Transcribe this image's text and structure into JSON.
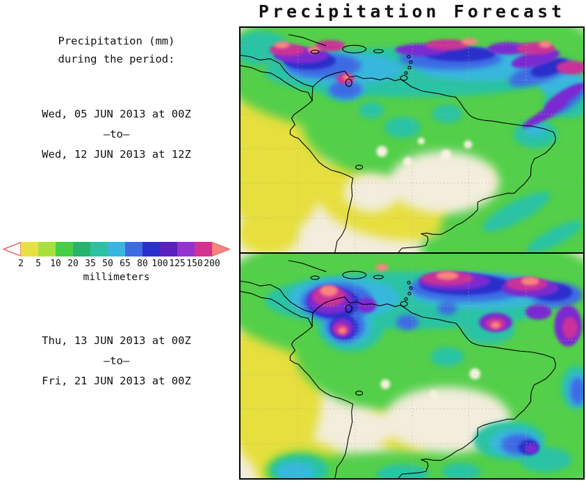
{
  "title": "Precipitation Forecast",
  "sidebar": {
    "heading_line1": "Precipitation (mm)",
    "heading_line2": "during the period:",
    "period1": {
      "start": "Wed, 05 JUN 2013 at 00Z",
      "separator": "–to–",
      "end": "Wed, 12 JUN 2013 at 12Z"
    },
    "period2": {
      "start": "Thu, 13 JUN 2013 at 00Z",
      "separator": "–to–",
      "end": "Fri, 21 JUN 2013 at 00Z"
    }
  },
  "colorbar": {
    "unit_label": "millimeters",
    "ticks": [
      "2",
      "5",
      "10",
      "20",
      "35",
      "50",
      "65",
      "80",
      "100",
      "125",
      "150",
      "200"
    ],
    "segment_colors": [
      "#e8e03e",
      "#a9e13b",
      "#45cf45",
      "#23b56b",
      "#29c3a4",
      "#37b7dd",
      "#3e6be4",
      "#2a2ecb",
      "#5a1fbe",
      "#9432d3",
      "#d63090"
    ],
    "under_range_color": "#ffffff",
    "over_range_color": "#f9847e",
    "arrow_outline_color": "#e87070"
  },
  "map": {
    "background_color": "#f2eddc",
    "border_color": "#000000",
    "gridline_color": "#b0b09c",
    "coastline_color": "#000000"
  }
}
